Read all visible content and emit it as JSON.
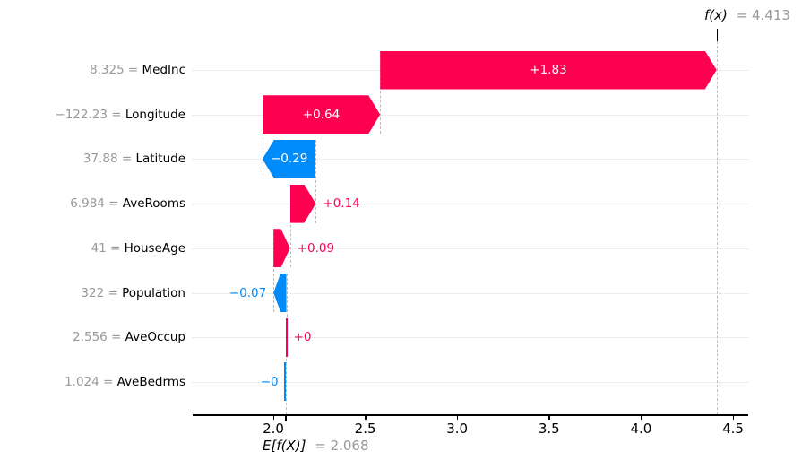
{
  "chart_data": {
    "type": "waterfall",
    "style": "shap-waterfall-plot",
    "fx_label_prefix": "f(x)",
    "fx_label_value": "= 4.413",
    "fx_value": 4.413,
    "base_label_prefix": "E[f(X)]",
    "base_label_value": "= 2.068",
    "base_value": 2.068,
    "equals_sign": "=",
    "x_tick_labels": [
      "2.0",
      "2.5",
      "3.0",
      "3.5",
      "4.0",
      "4.5"
    ],
    "x_tick_values": [
      2.0,
      2.5,
      3.0,
      3.5,
      4.0,
      4.5
    ],
    "xlim": [
      1.56,
      4.58
    ],
    "legend_position": "none",
    "grid": "dotted-horizontal-rows",
    "features": [
      {
        "value": "8.325",
        "name": "MedInc",
        "shap": 1.83,
        "label": "+1.83"
      },
      {
        "value": "−122.23",
        "name": "Longitude",
        "shap": 0.64,
        "label": "+0.64"
      },
      {
        "value": "37.88",
        "name": "Latitude",
        "shap": -0.29,
        "label": "−0.29"
      },
      {
        "value": "6.984",
        "name": "AveRooms",
        "shap": 0.14,
        "label": "+0.14"
      },
      {
        "value": "41",
        "name": "HouseAge",
        "shap": 0.09,
        "label": "+0.09"
      },
      {
        "value": "322",
        "name": "Population",
        "shap": -0.07,
        "label": "−0.07"
      },
      {
        "value": "2.556",
        "name": "AveOccup",
        "shap": 0.0045,
        "label": "+0"
      },
      {
        "value": "1.024",
        "name": "AveBedrms",
        "shap": -0.0015,
        "label": "−0"
      }
    ],
    "colors": {
      "positive": "#ff0051",
      "negative": "#008bfb",
      "muted_text": "#999999",
      "feature_name_text": "#000000",
      "gridline": "#dddddd",
      "connector": "#bbbbbb",
      "axis": "#000000",
      "background": "#ffffff"
    }
  }
}
